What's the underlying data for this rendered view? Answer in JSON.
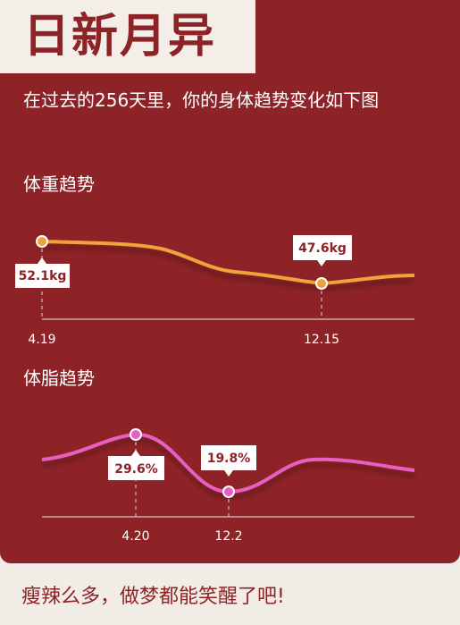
{
  "title": "日新月异",
  "intro": "在过去的256天里，你的身体趋势变化如下图",
  "footer": "瘦辣么多，做梦都能笑醒了吧!",
  "colors": {
    "background": "#8e2327",
    "weight_line": "#f0a23a",
    "fat_line": "#e85fc4",
    "callout_bg": "#ffffff",
    "callout_text": "#8e2327"
  },
  "weight_section": {
    "label": "体重趋势",
    "chart_data": {
      "type": "line",
      "x_ticks": [
        "4.19",
        "12.15"
      ],
      "series": [
        {
          "values": [
            52.1,
            51.7,
            51.7,
            49.0,
            48.2,
            48.1,
            47.6,
            47.7,
            48.0
          ]
        }
      ],
      "callouts": [
        {
          "label": "52.1kg",
          "tick": "4.19",
          "value": 52.1
        },
        {
          "label": "47.6kg",
          "tick": "12.15",
          "value": 47.6
        }
      ]
    }
  },
  "fat_section": {
    "label": "体脂趋势",
    "chart_data": {
      "type": "line",
      "x_ticks": [
        "4.20",
        "12.2"
      ],
      "series": [
        {
          "values": [
            25.6,
            29.6,
            19.8,
            25.2,
            24.0
          ]
        }
      ],
      "callouts": [
        {
          "label": "29.6%",
          "tick": "4.20",
          "value": 29.6
        },
        {
          "label": "19.8%",
          "tick": "12.2",
          "value": 19.8
        }
      ]
    }
  }
}
